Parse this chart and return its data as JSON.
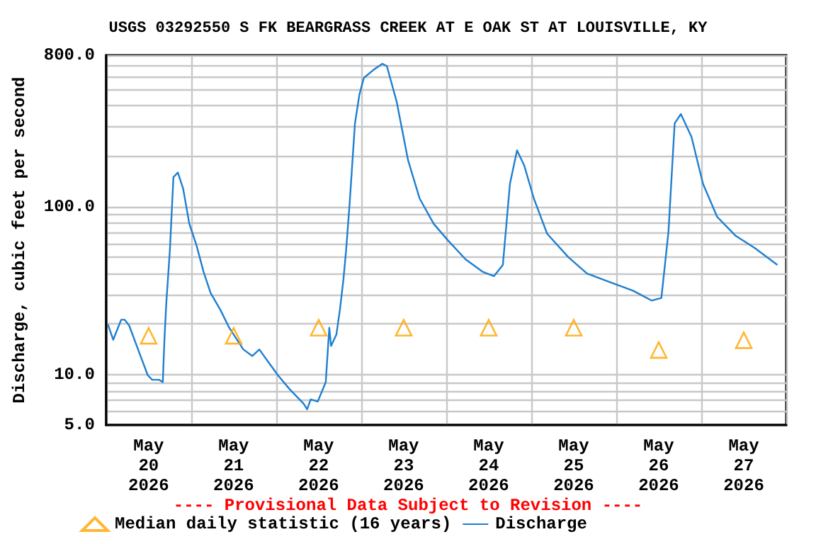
{
  "chart_data": {
    "type": "line",
    "title": "USGS 03292550 S FK BEARGRASS CREEK AT E OAK ST AT LOUISVILLE, KY",
    "ylabel": "Discharge, cubic feet per second",
    "annotations": [
      "---- Provisional Data Subject to Revision ----"
    ],
    "log": true,
    "grid": true,
    "legend": "bottom",
    "xlim": [
      "2026-05-20T00:00",
      "2026-05-28T00:00"
    ],
    "xticks": [
      {
        "value": "2026-05-20T00:00",
        "label": null
      },
      {
        "value": "2026-05-21T00:00",
        "label": null
      },
      {
        "value": "2026-05-22T00:00",
        "label": null
      },
      {
        "value": "2026-05-23T00:00",
        "label": null
      },
      {
        "value": "2026-05-24T00:00",
        "label": null
      },
      {
        "value": "2026-05-25T00:00",
        "label": null
      },
      {
        "value": "2026-05-26T00:00",
        "label": null
      },
      {
        "value": "2026-05-27T00:00",
        "label": null
      },
      {
        "value": "2026-05-28T00:00",
        "label": null
      },
      {
        "value": "2026-05-20T12:00",
        "label": "May\n20\n2026"
      },
      {
        "value": "2026-05-21T12:00",
        "label": "May\n21\n2026"
      },
      {
        "value": "2026-05-22T12:00",
        "label": "May\n22\n2026"
      },
      {
        "value": "2026-05-23T12:00",
        "label": "May\n23\n2026"
      },
      {
        "value": "2026-05-24T12:00",
        "label": "May\n24\n2026"
      },
      {
        "value": "2026-05-25T12:00",
        "label": "May\n25\n2026"
      },
      {
        "value": "2026-05-26T12:00",
        "label": "May\n26\n2026"
      },
      {
        "value": "2026-05-27T12:00",
        "label": "May\n27\n2026"
      }
    ],
    "ylim": [
      5,
      800
    ],
    "yticks": [
      {
        "value": 5,
        "label": "5.0"
      },
      {
        "value": 6,
        "label": null
      },
      {
        "value": 7,
        "label": null
      },
      {
        "value": 8,
        "label": null
      },
      {
        "value": 9,
        "label": null
      },
      {
        "value": 10,
        "label": "10.0"
      },
      {
        "value": 20,
        "label": null
      },
      {
        "value": 30,
        "label": null
      },
      {
        "value": 40,
        "label": null
      },
      {
        "value": 50,
        "label": null
      },
      {
        "value": 60,
        "label": null
      },
      {
        "value": 70,
        "label": null
      },
      {
        "value": 80,
        "label": null
      },
      {
        "value": 90,
        "label": null
      },
      {
        "value": 100,
        "label": "100.0"
      },
      {
        "value": 200,
        "label": null
      },
      {
        "value": 300,
        "label": null
      },
      {
        "value": 400,
        "label": null
      },
      {
        "value": 500,
        "label": null
      },
      {
        "value": 600,
        "label": null
      },
      {
        "value": 700,
        "label": null
      },
      {
        "value": 800,
        "label": "800.0"
      }
    ],
    "series": [
      {
        "name": "Median daily statistic (16 years)",
        "type": "scatter",
        "marker": "triangle",
        "color": "#ffa500",
        "x": [
          "2026-05-20T12:00",
          "2026-05-21T12:00",
          "2026-05-22T12:00",
          "2026-05-23T12:00",
          "2026-05-24T12:00",
          "2026-05-25T12:00",
          "2026-05-26T12:00",
          "2026-05-27T12:00"
        ],
        "values": [
          17,
          17,
          19,
          19,
          19,
          19,
          14,
          16
        ]
      },
      {
        "name": "Discharge",
        "marker": "none",
        "line_style": "solid",
        "color": "#1f7fd0",
        "x": [
          "2026-05-20T00:30",
          "2026-05-20T02:00",
          "2026-05-20T04:15",
          "2026-05-20T05:15",
          "2026-05-20T06:30",
          "2026-05-20T09:15",
          "2026-05-20T11:45",
          "2026-05-20T13:00",
          "2026-05-20T15:00",
          "2026-05-20T16:00",
          "2026-05-20T16:30",
          "2026-05-20T17:00",
          "2026-05-20T18:00",
          "2026-05-20T19:00",
          "2026-05-20T20:15",
          "2026-05-20T21:45",
          "2026-05-20T23:30",
          "2026-05-21T01:30",
          "2026-05-21T03:30",
          "2026-05-21T05:30",
          "2026-05-21T08:15",
          "2026-05-21T10:45",
          "2026-05-21T14:45",
          "2026-05-21T17:15",
          "2026-05-21T19:15",
          "2026-05-21T21:45",
          "2026-05-22T00:30",
          "2026-05-22T03:45",
          "2026-05-22T07:45",
          "2026-05-22T08:45",
          "2026-05-22T09:45",
          "2026-05-22T11:45",
          "2026-05-22T14:00",
          "2026-05-22T15:00",
          "2026-05-22T15:30",
          "2026-05-22T17:00",
          "2026-05-22T18:00",
          "2026-05-22T19:00",
          "2026-05-22T19:45",
          "2026-05-22T20:45",
          "2026-05-22T22:15",
          "2026-05-22T23:30",
          "2026-05-23T00:45",
          "2026-05-23T03:30",
          "2026-05-23T06:00",
          "2026-05-23T07:15",
          "2026-05-23T10:00",
          "2026-05-23T13:15",
          "2026-05-23T16:30",
          "2026-05-23T20:30",
          "2026-05-24T00:30",
          "2026-05-24T05:30",
          "2026-05-24T10:15",
          "2026-05-24T13:30",
          "2026-05-24T16:00",
          "2026-05-24T18:00",
          "2026-05-24T20:00",
          "2026-05-24T22:00",
          "2026-05-25T00:45",
          "2026-05-25T04:30",
          "2026-05-25T10:30",
          "2026-05-25T15:45",
          "2026-05-25T22:15",
          "2026-05-26T04:45",
          "2026-05-26T10:00",
          "2026-05-26T12:45",
          "2026-05-26T14:45",
          "2026-05-26T16:30",
          "2026-05-26T18:15",
          "2026-05-26T21:15",
          "2026-05-27T00:30",
          "2026-05-27T04:30",
          "2026-05-27T09:45",
          "2026-05-27T15:00",
          "2026-05-27T21:30"
        ],
        "values": [
          19.9,
          16.1,
          21.2,
          21.2,
          19.6,
          13.7,
          9.9,
          9.3,
          9.3,
          9.0,
          16.8,
          26.9,
          55,
          150,
          160,
          128,
          79,
          59,
          41,
          30.6,
          24.3,
          19.0,
          14.1,
          12.9,
          14.1,
          11.9,
          9.9,
          8.2,
          6.7,
          6.2,
          7.1,
          6.9,
          9.0,
          19.0,
          14.8,
          17.3,
          24.3,
          37,
          55,
          105,
          314,
          466,
          586,
          655,
          712,
          690,
          425,
          189,
          112,
          79,
          63,
          48.5,
          41,
          38.6,
          45,
          137,
          217,
          177,
          112,
          69,
          50,
          40,
          35.5,
          31.6,
          27.6,
          28.6,
          71,
          314,
          357,
          261,
          137,
          87,
          67,
          57,
          45
        ]
      }
    ]
  }
}
